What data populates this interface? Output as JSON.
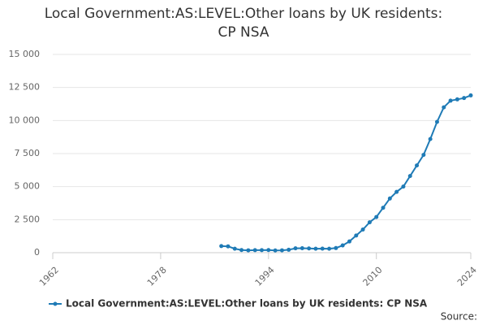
{
  "chart_data": {
    "type": "line",
    "title": "Local Government:AS:LEVEL:Other loans by UK residents: CP NSA",
    "x": [
      1987,
      1988,
      1989,
      1990,
      1991,
      1992,
      1993,
      1994,
      1995,
      1996,
      1997,
      1998,
      1999,
      2000,
      2001,
      2002,
      2003,
      2004,
      2005,
      2006,
      2007,
      2008,
      2009,
      2010,
      2011,
      2012,
      2013,
      2014,
      2015,
      2016,
      2017,
      2018,
      2019,
      2020,
      2021,
      2022,
      2023,
      2024
    ],
    "series": [
      {
        "name": "Local Government:AS:LEVEL:Other loans by UK residents: CP NSA",
        "color": "#1f7bb6",
        "values": [
          500,
          480,
          300,
          200,
          180,
          190,
          190,
          200,
          170,
          180,
          220,
          330,
          340,
          320,
          300,
          310,
          300,
          350,
          550,
          850,
          1300,
          1750,
          2300,
          2700,
          3400,
          4100,
          4600,
          5000,
          5800,
          6600,
          7400,
          8600,
          9900,
          11000,
          11500,
          11600,
          11700,
          11900
        ]
      }
    ],
    "xlim": [
      1962,
      2024
    ],
    "xticks": [
      1962,
      1978,
      1994,
      2010,
      2024
    ],
    "ylim": [
      0,
      15000
    ],
    "yticks": [
      0,
      {
        "value": 2500,
        "label": "2 500"
      },
      {
        "value": 5000,
        "label": "5 000"
      },
      {
        "value": 7500,
        "label": "7 500"
      },
      {
        "value": 10000,
        "label": "10 000"
      },
      {
        "value": 12500,
        "label": "12 500"
      },
      {
        "value": 15000,
        "label": "15 000"
      }
    ],
    "grid": true,
    "legend": "bottom",
    "source": "Source:"
  }
}
